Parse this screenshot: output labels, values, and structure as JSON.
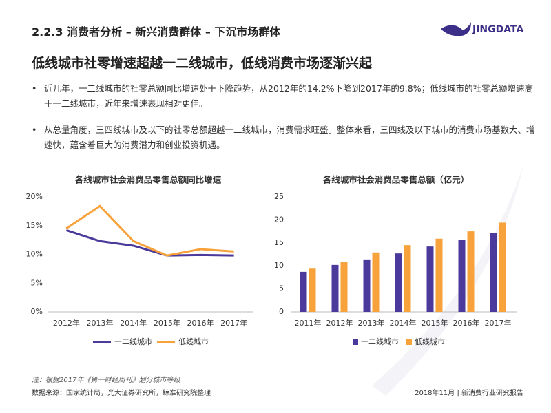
{
  "header": {
    "title": "2.2.3 消费者分析 – 新兴消费群体 – 下沉市场群体",
    "logo": "JINGDATA"
  },
  "headline": "低线城市社零增速超越一二线城市，低线消费市场逐渐兴起",
  "bullets": [
    "近几年，一二线城市的社零总额同比增速处于下降趋势，从2012年的14.2%下降到2017年的9.8%；低线城市的社零总额增速高于一二线城市，近年来增速表现相对更佳。",
    "从总量角度，三四线城市及以下的社零总额超越一二线城市，消费需求旺盛。整体来看，三四线及以下城市的消费市场基数大、增速快，蕴含着巨大的消费潜力和创业投资机遇。"
  ],
  "footer": {
    "note": "注：根据2017年《第一财经周刊》划分城市等级",
    "source": "数据来源：国家统计局，光大证券研究所，鲸准研究院整理",
    "date": "2018年11月 | 新消费行业研究报告"
  },
  "chart_data": [
    {
      "type": "line",
      "title": "各线城市社会消费品零售总额同比增速",
      "categories": [
        "2012年",
        "2013年",
        "2014年",
        "2015年",
        "2016年",
        "2017年"
      ],
      "series": [
        {
          "name": "一二线城市",
          "color": "#4b3a9b",
          "values": [
            14.2,
            12.3,
            11.5,
            9.8,
            9.9,
            9.8
          ]
        },
        {
          "name": "低线城市",
          "color": "#f7a23b",
          "values": [
            14.5,
            18.4,
            12.3,
            9.8,
            10.9,
            10.5
          ]
        }
      ],
      "ylim": [
        0,
        20
      ],
      "yticks": [
        {
          "value": 0,
          "label": "0%"
        },
        {
          "value": 5,
          "label": "5%"
        },
        {
          "value": 10,
          "label": "10%"
        },
        {
          "value": 15,
          "label": "15%"
        },
        {
          "value": 20,
          "label": "20%"
        }
      ],
      "grid": false,
      "legend": "bottom"
    },
    {
      "type": "bar",
      "title": "各线城市社会消费品零售总额（亿元）",
      "categories": [
        "2011年",
        "2012年",
        "2013年",
        "2014年",
        "2015年",
        "2016年",
        "2017年"
      ],
      "series": [
        {
          "name": "一二线城市",
          "color": "#4b3a9b",
          "values": [
            8.7,
            10.2,
            11.4,
            12.7,
            14.2,
            15.6,
            17.1
          ]
        },
        {
          "name": "低线城市",
          "color": "#f7a23b",
          "values": [
            9.4,
            10.9,
            12.9,
            14.5,
            15.9,
            17.5,
            19.4
          ]
        }
      ],
      "ylim": [
        0,
        25
      ],
      "yticks": [
        0,
        5,
        10,
        15,
        20,
        25
      ],
      "grid": false,
      "legend": "bottom"
    }
  ]
}
